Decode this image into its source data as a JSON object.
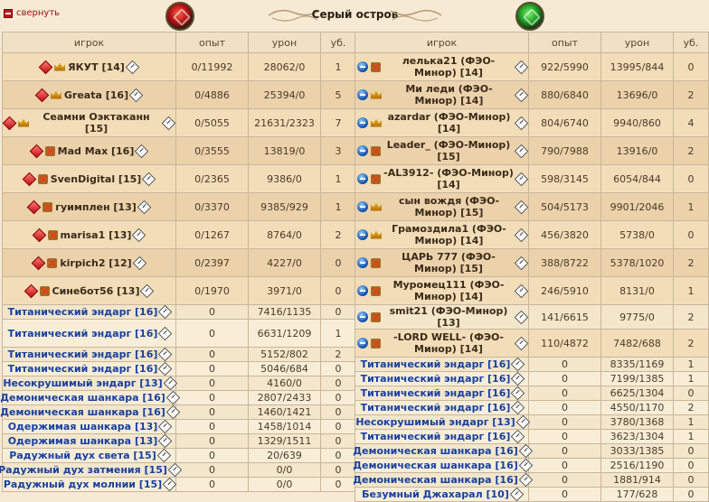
{
  "collapse_label": "свернуть",
  "title": "Серый остров",
  "columns": {
    "player": "игрок",
    "exp": "опыт",
    "damage": "урон",
    "kills": "уб."
  },
  "colors": {
    "player_name": "#3a2a18",
    "mob_name": "#1840a0",
    "header_bg": "#f0e0c4"
  },
  "left": [
    {
      "type": "player",
      "name": "ЯКУТ [14]",
      "badge": "crown",
      "exp": "0/11992",
      "damage": "28062/0",
      "kills": "1"
    },
    {
      "type": "player",
      "name": "Greata [16]",
      "badge": "crown",
      "exp": "0/4886",
      "damage": "25394/0",
      "kills": "5"
    },
    {
      "type": "player",
      "name": "Сеамни Оэктаканн [15]",
      "badge": "crown",
      "exp": "0/5055",
      "damage": "21631/2323",
      "kills": "7"
    },
    {
      "type": "player",
      "name": "Mad Max [16]",
      "badge": "cross",
      "exp": "0/3555",
      "damage": "13819/0",
      "kills": "3"
    },
    {
      "type": "player",
      "name": "SvenDigital [15]",
      "badge": "cross",
      "exp": "0/2365",
      "damage": "9386/0",
      "kills": "1"
    },
    {
      "type": "player",
      "name": "гуимплен [13]",
      "badge": "cross",
      "exp": "0/3370",
      "damage": "9385/929",
      "kills": "1"
    },
    {
      "type": "player",
      "name": "marisa1 [13]",
      "badge": "cross",
      "exp": "0/1267",
      "damage": "8764/0",
      "kills": "2"
    },
    {
      "type": "player",
      "name": "kirpich2 [12]",
      "badge": "cross",
      "exp": "0/2397",
      "damage": "4227/0",
      "kills": "0"
    },
    {
      "type": "player",
      "name": "Синебот56 [13]",
      "badge": "cross",
      "exp": "0/1970",
      "damage": "3971/0",
      "kills": "0"
    },
    {
      "type": "mob",
      "name": "Титанический эндарг [16]",
      "exp": "0",
      "damage": "7416/1135",
      "kills": "0"
    },
    {
      "type": "mob",
      "name": "Титанический эндарг [16]",
      "exp": "0",
      "damage": "6631/1209",
      "kills": "1",
      "tall": true
    },
    {
      "type": "mob",
      "name": "Титанический эндарг [16]",
      "exp": "0",
      "damage": "5152/802",
      "kills": "2"
    },
    {
      "type": "mob",
      "name": "Титанический эндарг [16]",
      "exp": "0",
      "damage": "5046/684",
      "kills": "0"
    },
    {
      "type": "mob",
      "name": "Несокрушимый эндарг [13]",
      "exp": "0",
      "damage": "4160/0",
      "kills": "0"
    },
    {
      "type": "mob",
      "name": "Демоническая шанкара [16]",
      "exp": "0",
      "damage": "2807/2433",
      "kills": "0"
    },
    {
      "type": "mob",
      "name": "Демоническая шанкара [16]",
      "exp": "0",
      "damage": "1460/1421",
      "kills": "0"
    },
    {
      "type": "mob",
      "name": "Одержимая шанкара [13]",
      "exp": "0",
      "damage": "1458/1014",
      "kills": "0"
    },
    {
      "type": "mob",
      "name": "Одержимая шанкара [13]",
      "exp": "0",
      "damage": "1329/1511",
      "kills": "0"
    },
    {
      "type": "mob",
      "name": "Радужный дух света [15]",
      "exp": "0",
      "damage": "20/639",
      "kills": "0"
    },
    {
      "type": "mob",
      "name": "Радужный дух затмения [15]",
      "exp": "0",
      "damage": "0/0",
      "kills": "0"
    },
    {
      "type": "mob",
      "name": "Радужный дух молнии [15]",
      "exp": "0",
      "damage": "0/0",
      "kills": "0"
    }
  ],
  "right": [
    {
      "type": "player",
      "name": "лелька21 (ФЭО-Минор) [14]",
      "badge": "cross",
      "exp": "922/5990",
      "damage": "13995/844",
      "kills": "0"
    },
    {
      "type": "player",
      "name": "Ми леди (ФЭО-Минор) [14]",
      "badge": "crown",
      "exp": "880/6840",
      "damage": "13696/0",
      "kills": "2"
    },
    {
      "type": "player",
      "name": "azardar (ФЭО-Минор) [14]",
      "badge": "crown",
      "exp": "804/6740",
      "damage": "9940/860",
      "kills": "4"
    },
    {
      "type": "player",
      "name": "Leader_ (ФЭО-Минор) [15]",
      "badge": "cross",
      "exp": "790/7988",
      "damage": "13916/0",
      "kills": "2"
    },
    {
      "type": "player",
      "name": "-AL3912- (ФЭО-Минор) [14]",
      "badge": "cross",
      "exp": "598/3145",
      "damage": "6054/844",
      "kills": "0"
    },
    {
      "type": "player",
      "name": "сын вождя (ФЭО-Минор) [15]",
      "badge": "crown",
      "exp": "504/5173",
      "damage": "9901/2046",
      "kills": "1"
    },
    {
      "type": "player",
      "name": "Грамоздила1 (ФЭО-Минор) [14]",
      "badge": "crown",
      "exp": "456/3820",
      "damage": "5738/0",
      "kills": "0"
    },
    {
      "type": "player",
      "name": "ЦАРЬ 777 (ФЭО-Минор) [15]",
      "badge": "cross",
      "exp": "388/8722",
      "damage": "5378/1020",
      "kills": "2"
    },
    {
      "type": "player",
      "name": "Муромец111 (ФЭО-Минор) [14]",
      "badge": "cross",
      "exp": "246/5910",
      "damage": "8131/0",
      "kills": "1"
    },
    {
      "type": "player",
      "name": "smit21 (ФЭО-Минор) [13]",
      "badge": "cross",
      "exp": "141/6615",
      "damage": "9775/0",
      "kills": "2",
      "short": true
    },
    {
      "type": "player",
      "name": "-LORD WELL- (ФЭО-Минор) [14]",
      "badge": "cross",
      "exp": "110/4872",
      "damage": "7482/688",
      "kills": "2"
    },
    {
      "type": "mob",
      "name": "Титанический эндарг [16]",
      "exp": "0",
      "damage": "8335/1169",
      "kills": "1"
    },
    {
      "type": "mob",
      "name": "Титанический эндарг [16]",
      "exp": "0",
      "damage": "7199/1385",
      "kills": "1"
    },
    {
      "type": "mob",
      "name": "Титанический эндарг [16]",
      "exp": "0",
      "damage": "6625/1304",
      "kills": "0"
    },
    {
      "type": "mob",
      "name": "Титанический эндарг [16]",
      "exp": "0",
      "damage": "4550/1170",
      "kills": "2"
    },
    {
      "type": "mob",
      "name": "Несокрушимый эндарг [13]",
      "exp": "0",
      "damage": "3780/1368",
      "kills": "1"
    },
    {
      "type": "mob",
      "name": "Титанический эндарг [16]",
      "exp": "0",
      "damage": "3623/1304",
      "kills": "1"
    },
    {
      "type": "mob",
      "name": "Демоническая шанкара [16]",
      "exp": "0",
      "damage": "3033/1385",
      "kills": "0"
    },
    {
      "type": "mob",
      "name": "Демоническая шанкара [16]",
      "exp": "0",
      "damage": "2516/1190",
      "kills": "0"
    },
    {
      "type": "mob",
      "name": "Демоническая шанкара [16]",
      "exp": "0",
      "damage": "1881/914",
      "kills": "0"
    },
    {
      "type": "mob",
      "name": "Безумный Джахарал [10]",
      "exp": "0",
      "damage": "177/628",
      "kills": "0"
    }
  ]
}
